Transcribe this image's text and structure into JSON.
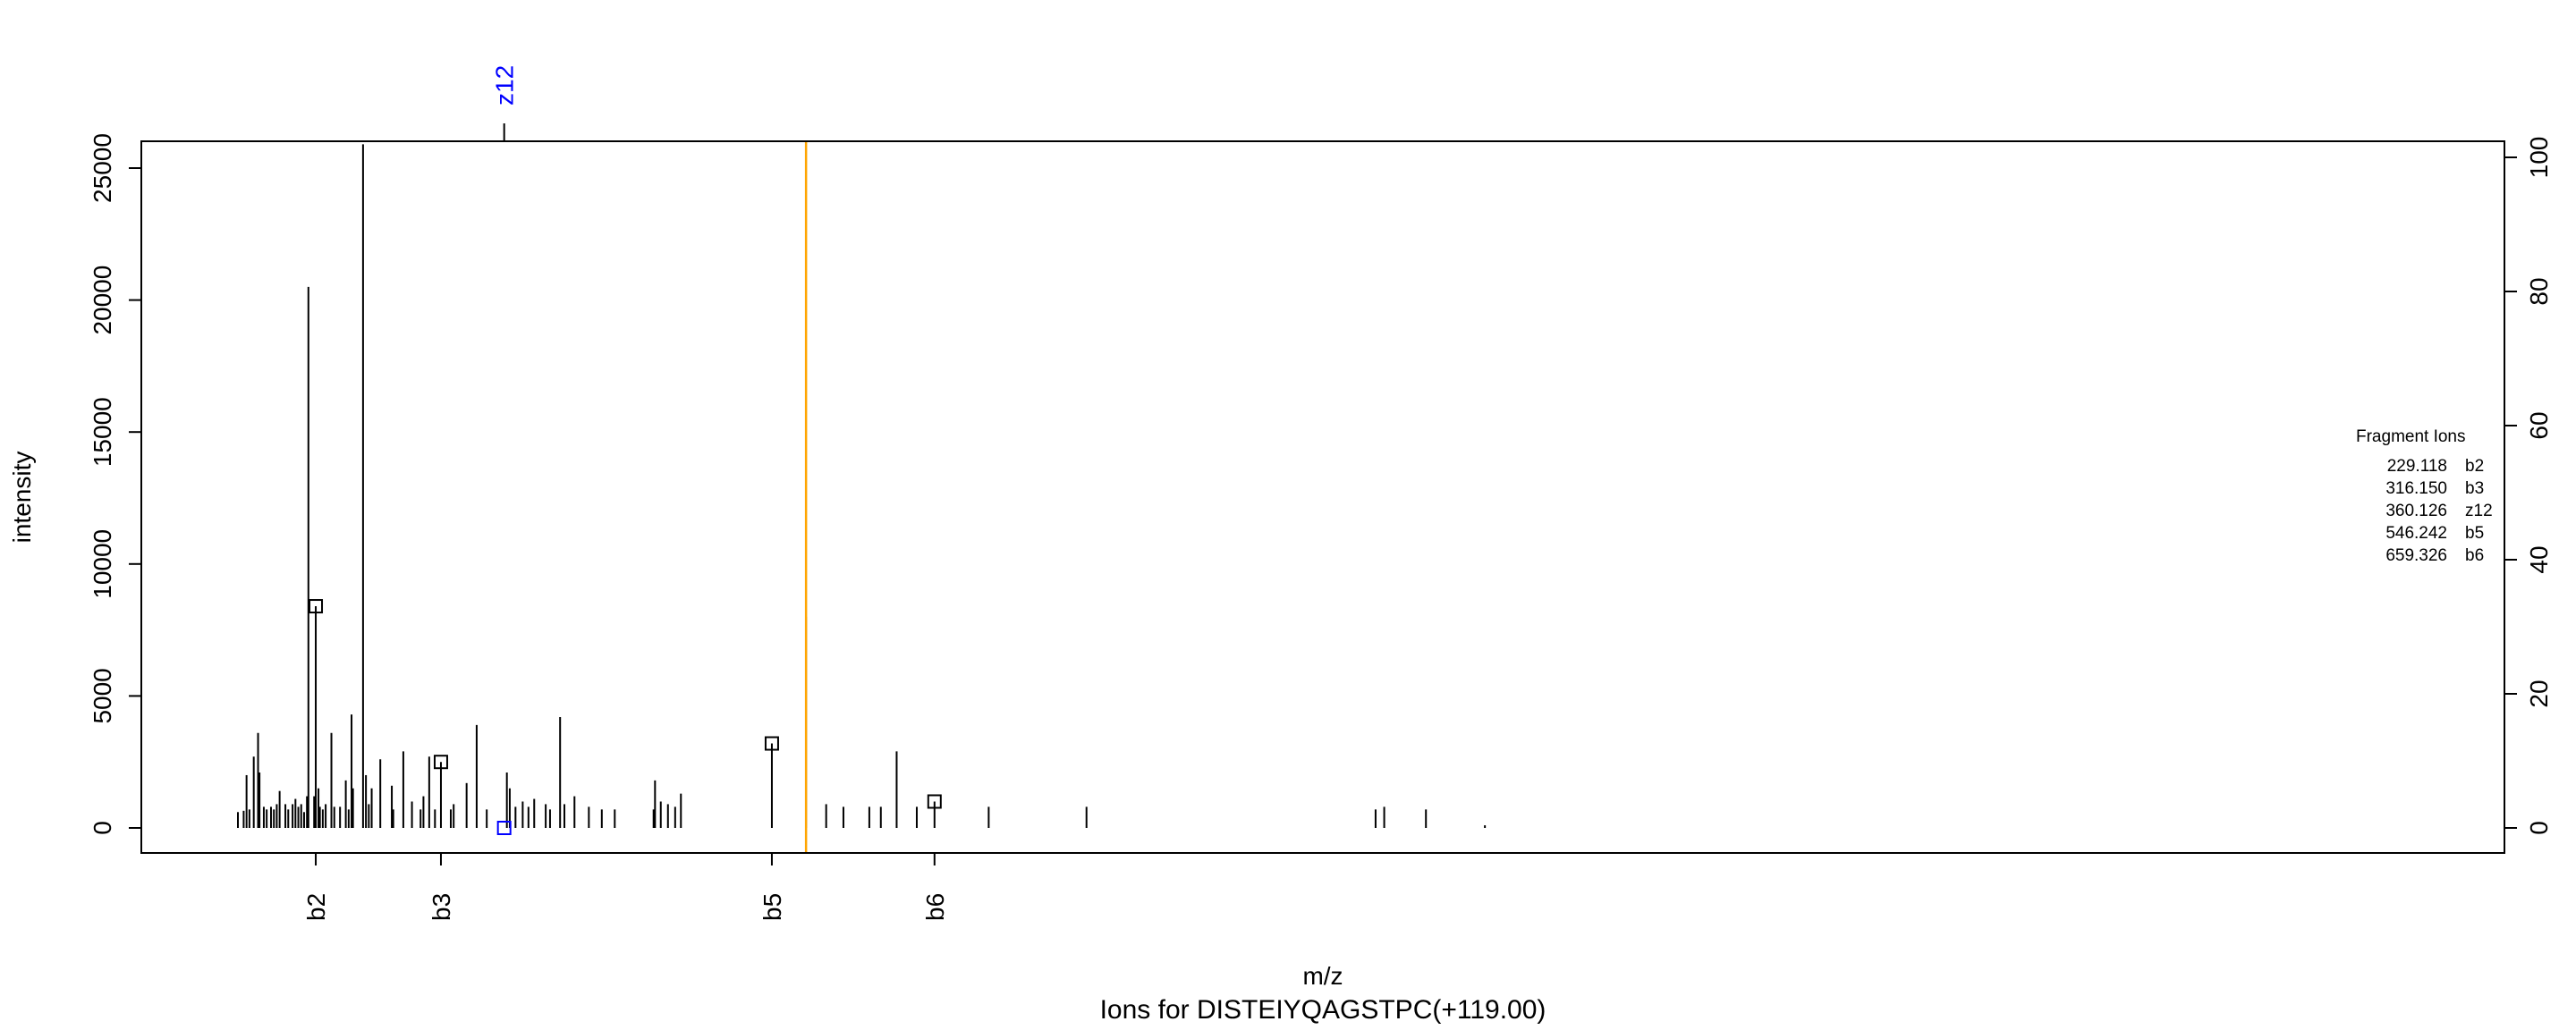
{
  "chart_data": {
    "type": "bar",
    "title": "Ions for DISTEIYQAGSTPC(+119.00)",
    "xlabel": "m/z",
    "ylabel": "intensity",
    "xlim": [
      140,
      1100
    ],
    "ylim": [
      0,
      26000
    ],
    "right_axis": {
      "ticks": [
        0,
        20,
        40,
        60,
        80,
        100
      ],
      "max": 100
    },
    "yticks": [
      0,
      5000,
      10000,
      15000,
      20000,
      25000
    ],
    "grid": false,
    "colors": {
      "peak": "#000000",
      "annotated": "#0000ff",
      "marker": "#ffa500"
    },
    "reference_line_mz": 570,
    "peaks": [
      [
        175,
        600
      ],
      [
        179,
        650
      ],
      [
        181,
        2000
      ],
      [
        183,
        700
      ],
      [
        186,
        2700
      ],
      [
        189,
        3600
      ],
      [
        190,
        2100
      ],
      [
        193,
        800
      ],
      [
        195,
        700
      ],
      [
        198,
        800
      ],
      [
        200,
        700
      ],
      [
        202,
        900
      ],
      [
        204,
        1400
      ],
      [
        208,
        900
      ],
      [
        210,
        700
      ],
      [
        213,
        900
      ],
      [
        215,
        1100
      ],
      [
        217,
        800
      ],
      [
        219,
        900
      ],
      [
        221,
        600
      ],
      [
        223,
        1200
      ],
      [
        224,
        20500
      ],
      [
        229.118,
        8400
      ],
      [
        228,
        1200
      ],
      [
        231,
        1500
      ],
      [
        232,
        800
      ],
      [
        234,
        700
      ],
      [
        236,
        900
      ],
      [
        240,
        3600
      ],
      [
        242,
        800
      ],
      [
        246,
        800
      ],
      [
        250,
        1800
      ],
      [
        252,
        700
      ],
      [
        254,
        4300
      ],
      [
        255,
        1500
      ],
      [
        262,
        25900
      ],
      [
        264,
        2000
      ],
      [
        266,
        900
      ],
      [
        268,
        1500
      ],
      [
        274,
        2600
      ],
      [
        282,
        1600
      ],
      [
        283,
        700
      ],
      [
        290,
        2900
      ],
      [
        296,
        1000
      ],
      [
        302,
        700
      ],
      [
        304,
        1200
      ],
      [
        308,
        2700
      ],
      [
        312,
        700
      ],
      [
        323,
        700
      ],
      [
        325,
        900
      ],
      [
        334,
        1700
      ],
      [
        341,
        3900
      ],
      [
        348,
        700
      ],
      [
        362,
        2100
      ],
      [
        364,
        1500
      ],
      [
        368,
        800
      ],
      [
        373,
        1000
      ],
      [
        377,
        800
      ],
      [
        381,
        1100
      ],
      [
        389,
        900
      ],
      [
        392,
        700
      ],
      [
        399,
        4200
      ],
      [
        402,
        900
      ],
      [
        409,
        1200
      ],
      [
        419,
        800
      ],
      [
        428,
        700
      ],
      [
        437,
        700
      ],
      [
        464,
        700
      ],
      [
        465,
        1800
      ],
      [
        469,
        1000
      ],
      [
        474,
        900
      ],
      [
        479,
        800
      ],
      [
        483,
        1300
      ],
      [
        570,
        8000
      ],
      [
        584,
        900
      ],
      [
        596,
        800
      ],
      [
        614,
        800
      ],
      [
        622,
        800
      ],
      [
        633,
        2900
      ],
      [
        647,
        800
      ],
      [
        697,
        800
      ],
      [
        765,
        800
      ],
      [
        966,
        700
      ],
      [
        972,
        800
      ],
      [
        1001,
        700
      ],
      [
        1042,
        100
      ],
      [
        316.15,
        2500
      ],
      [
        546.242,
        3200
      ],
      [
        659.326,
        1000
      ],
      [
        360.126,
        0
      ]
    ],
    "fragment_ions": [
      {
        "mz": 229.118,
        "label": "b2",
        "intensity": 8400,
        "axis": "bottom"
      },
      {
        "mz": 316.15,
        "label": "b3",
        "intensity": 2500,
        "axis": "bottom"
      },
      {
        "mz": 360.126,
        "label": "z12",
        "intensity": 0,
        "axis": "top"
      },
      {
        "mz": 546.242,
        "label": "b5",
        "intensity": 3200,
        "axis": "bottom"
      },
      {
        "mz": 659.326,
        "label": "b6",
        "intensity": 1000,
        "axis": "bottom"
      }
    ],
    "legend": {
      "title": "Fragment Ions",
      "placement": "right",
      "rows": [
        {
          "mz": "229.118",
          "label": "b2"
        },
        {
          "mz": "316.150",
          "label": "b3"
        },
        {
          "mz": "360.126",
          "label": "z12"
        },
        {
          "mz": "546.242",
          "label": "b5"
        },
        {
          "mz": "659.326",
          "label": "b6"
        }
      ]
    }
  }
}
